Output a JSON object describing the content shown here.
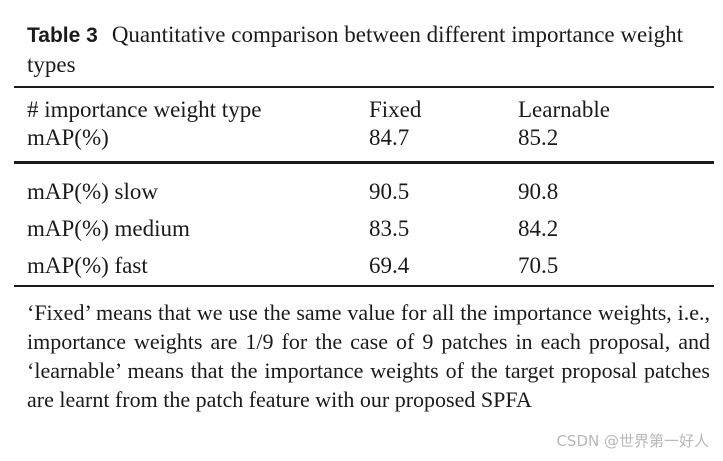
{
  "caption": {
    "label": "Table 3",
    "text": "Quantitative comparison between different importance weight types"
  },
  "table": {
    "header": {
      "row1": [
        "# importance weight type",
        "Fixed",
        "Learnable"
      ],
      "row2": [
        "mAP(%)",
        "84.7",
        "85.2"
      ]
    },
    "rows": [
      [
        "mAP(%) slow",
        "90.5",
        "90.8"
      ],
      [
        "mAP(%) medium",
        "83.5",
        "84.2"
      ],
      [
        "mAP(%) fast",
        "69.4",
        "70.5"
      ]
    ]
  },
  "footnote": "‘Fixed’ means that we use the same value for all the importance weights, i.e., importance weights are 1/9 for the case of 9 patches in each proposal, and ‘learnable’ means that the importance weights of the target proposal patches are learnt from the patch feature with our proposed SPFA",
  "watermark": "CSDN @世界第一好人"
}
